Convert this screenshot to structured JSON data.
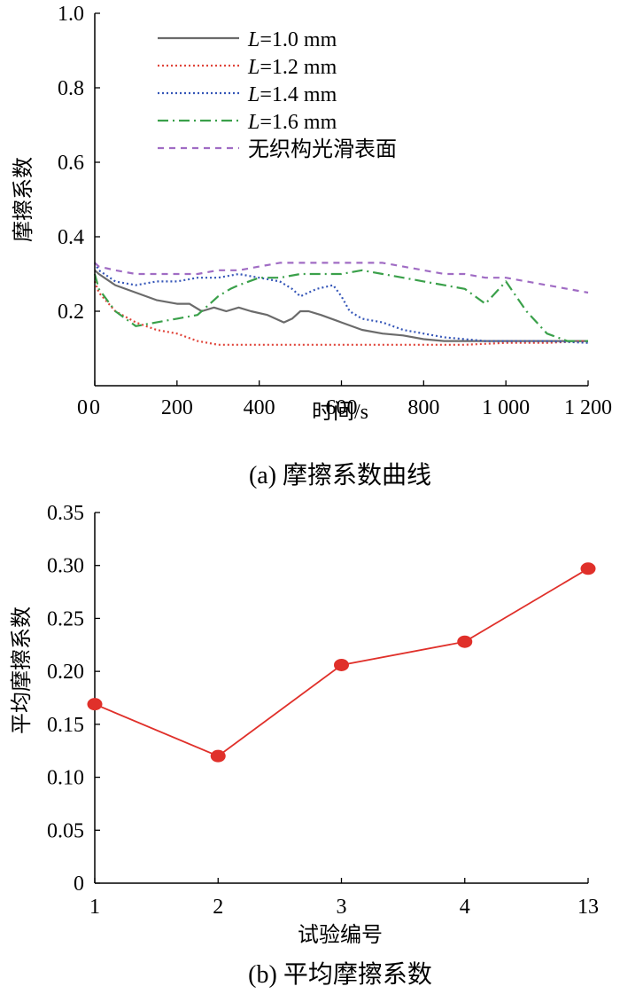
{
  "chart_data": [
    {
      "type": "line",
      "caption": "(a)  摩擦系数曲线",
      "xlabel": "时间/s",
      "ylabel": "摩擦系数",
      "xlim": [
        0,
        1200
      ],
      "ylim": [
        0,
        1.0
      ],
      "xticks": [
        0,
        200,
        400,
        600,
        800,
        1000,
        1200
      ],
      "xtick_labels": [
        "0",
        "200",
        "400",
        "600",
        "800",
        "1 000",
        "1 200"
      ],
      "yticks": [
        0.2,
        0.4,
        0.6,
        0.8,
        1.0
      ],
      "ytick_labels": [
        "0.2",
        "0.4",
        "0.6",
        "0.8",
        "1.0"
      ],
      "legend_position": "top-left",
      "series": [
        {
          "name": "L=1.0 mm",
          "label_italic": "L",
          "label_rest": "=1.0 mm",
          "color": "#6b6b6b",
          "dash": "solid",
          "x": [
            0,
            10,
            50,
            100,
            150,
            200,
            230,
            260,
            290,
            320,
            350,
            380,
            420,
            460,
            480,
            500,
            520,
            550,
            600,
            650,
            700,
            750,
            800,
            850,
            900,
            950,
            1000,
            1050,
            1100,
            1150,
            1200
          ],
          "y": [
            0.31,
            0.3,
            0.27,
            0.25,
            0.23,
            0.22,
            0.22,
            0.2,
            0.21,
            0.2,
            0.21,
            0.2,
            0.19,
            0.17,
            0.18,
            0.2,
            0.2,
            0.19,
            0.17,
            0.15,
            0.14,
            0.135,
            0.125,
            0.12,
            0.12,
            0.12,
            0.12,
            0.12,
            0.12,
            0.12,
            0.12
          ]
        },
        {
          "name": "L=1.2 mm",
          "label_italic": "L",
          "label_rest": "=1.2 mm",
          "color": "#e0443a",
          "dash": "dotted",
          "x": [
            0,
            10,
            50,
            100,
            150,
            200,
            250,
            300,
            400,
            500,
            600,
            700,
            800,
            900,
            1000,
            1100,
            1200
          ],
          "y": [
            0.28,
            0.25,
            0.2,
            0.17,
            0.15,
            0.14,
            0.12,
            0.11,
            0.11,
            0.11,
            0.11,
            0.11,
            0.11,
            0.11,
            0.115,
            0.115,
            0.12
          ]
        },
        {
          "name": "L=1.4 mm",
          "label_italic": "L",
          "label_rest": "=1.4 mm",
          "color": "#3556b8",
          "dash": "dotted",
          "x": [
            0,
            10,
            50,
            100,
            150,
            200,
            250,
            300,
            350,
            400,
            450,
            480,
            500,
            540,
            580,
            600,
            620,
            650,
            700,
            750,
            800,
            850,
            900,
            950,
            1000,
            1100,
            1200
          ],
          "y": [
            0.33,
            0.31,
            0.28,
            0.27,
            0.28,
            0.28,
            0.29,
            0.29,
            0.3,
            0.29,
            0.28,
            0.26,
            0.24,
            0.26,
            0.27,
            0.24,
            0.2,
            0.18,
            0.17,
            0.15,
            0.14,
            0.13,
            0.125,
            0.12,
            0.12,
            0.12,
            0.115
          ]
        },
        {
          "name": "L=1.6 mm",
          "label_italic": "L",
          "label_rest": "=1.6 mm",
          "color": "#3aa04a",
          "dash": "dashdot",
          "x": [
            0,
            10,
            50,
            100,
            150,
            200,
            250,
            280,
            300,
            330,
            350,
            400,
            450,
            500,
            600,
            650,
            700,
            800,
            850,
            900,
            950,
            1000,
            1050,
            1100,
            1150,
            1200
          ],
          "y": [
            0.3,
            0.26,
            0.2,
            0.16,
            0.17,
            0.18,
            0.19,
            0.22,
            0.24,
            0.26,
            0.27,
            0.29,
            0.29,
            0.3,
            0.3,
            0.31,
            0.3,
            0.28,
            0.27,
            0.26,
            0.22,
            0.28,
            0.2,
            0.14,
            0.12,
            0.12
          ]
        },
        {
          "name": "无织构光滑表面",
          "label_italic": "",
          "label_rest": "无织构光滑表面",
          "color": "#a06cc4",
          "dash": "dashed",
          "x": [
            0,
            10,
            50,
            100,
            150,
            200,
            250,
            300,
            350,
            400,
            450,
            500,
            550,
            600,
            650,
            700,
            750,
            800,
            850,
            900,
            950,
            1000,
            1050,
            1100,
            1150,
            1200
          ],
          "y": [
            0.33,
            0.32,
            0.31,
            0.3,
            0.3,
            0.3,
            0.3,
            0.31,
            0.31,
            0.32,
            0.33,
            0.33,
            0.33,
            0.33,
            0.33,
            0.33,
            0.32,
            0.31,
            0.3,
            0.3,
            0.29,
            0.29,
            0.28,
            0.27,
            0.26,
            0.25
          ]
        }
      ]
    },
    {
      "type": "line",
      "caption": "(b)  平均摩擦系数",
      "xlabel": "试验编号",
      "ylabel": "平均摩擦系数",
      "categories": [
        "1",
        "2",
        "3",
        "4",
        "13"
      ],
      "values": [
        0.169,
        0.12,
        0.206,
        0.228,
        0.297
      ],
      "ylim": [
        0,
        0.35
      ],
      "yticks": [
        0,
        0.05,
        0.1,
        0.15,
        0.2,
        0.25,
        0.3,
        0.35
      ],
      "ytick_labels": [
        "0",
        "0.05",
        "0.10",
        "0.15",
        "0.20",
        "0.25",
        "0.30",
        "0.35"
      ],
      "color": "#e0302a",
      "marker": "circle"
    }
  ]
}
